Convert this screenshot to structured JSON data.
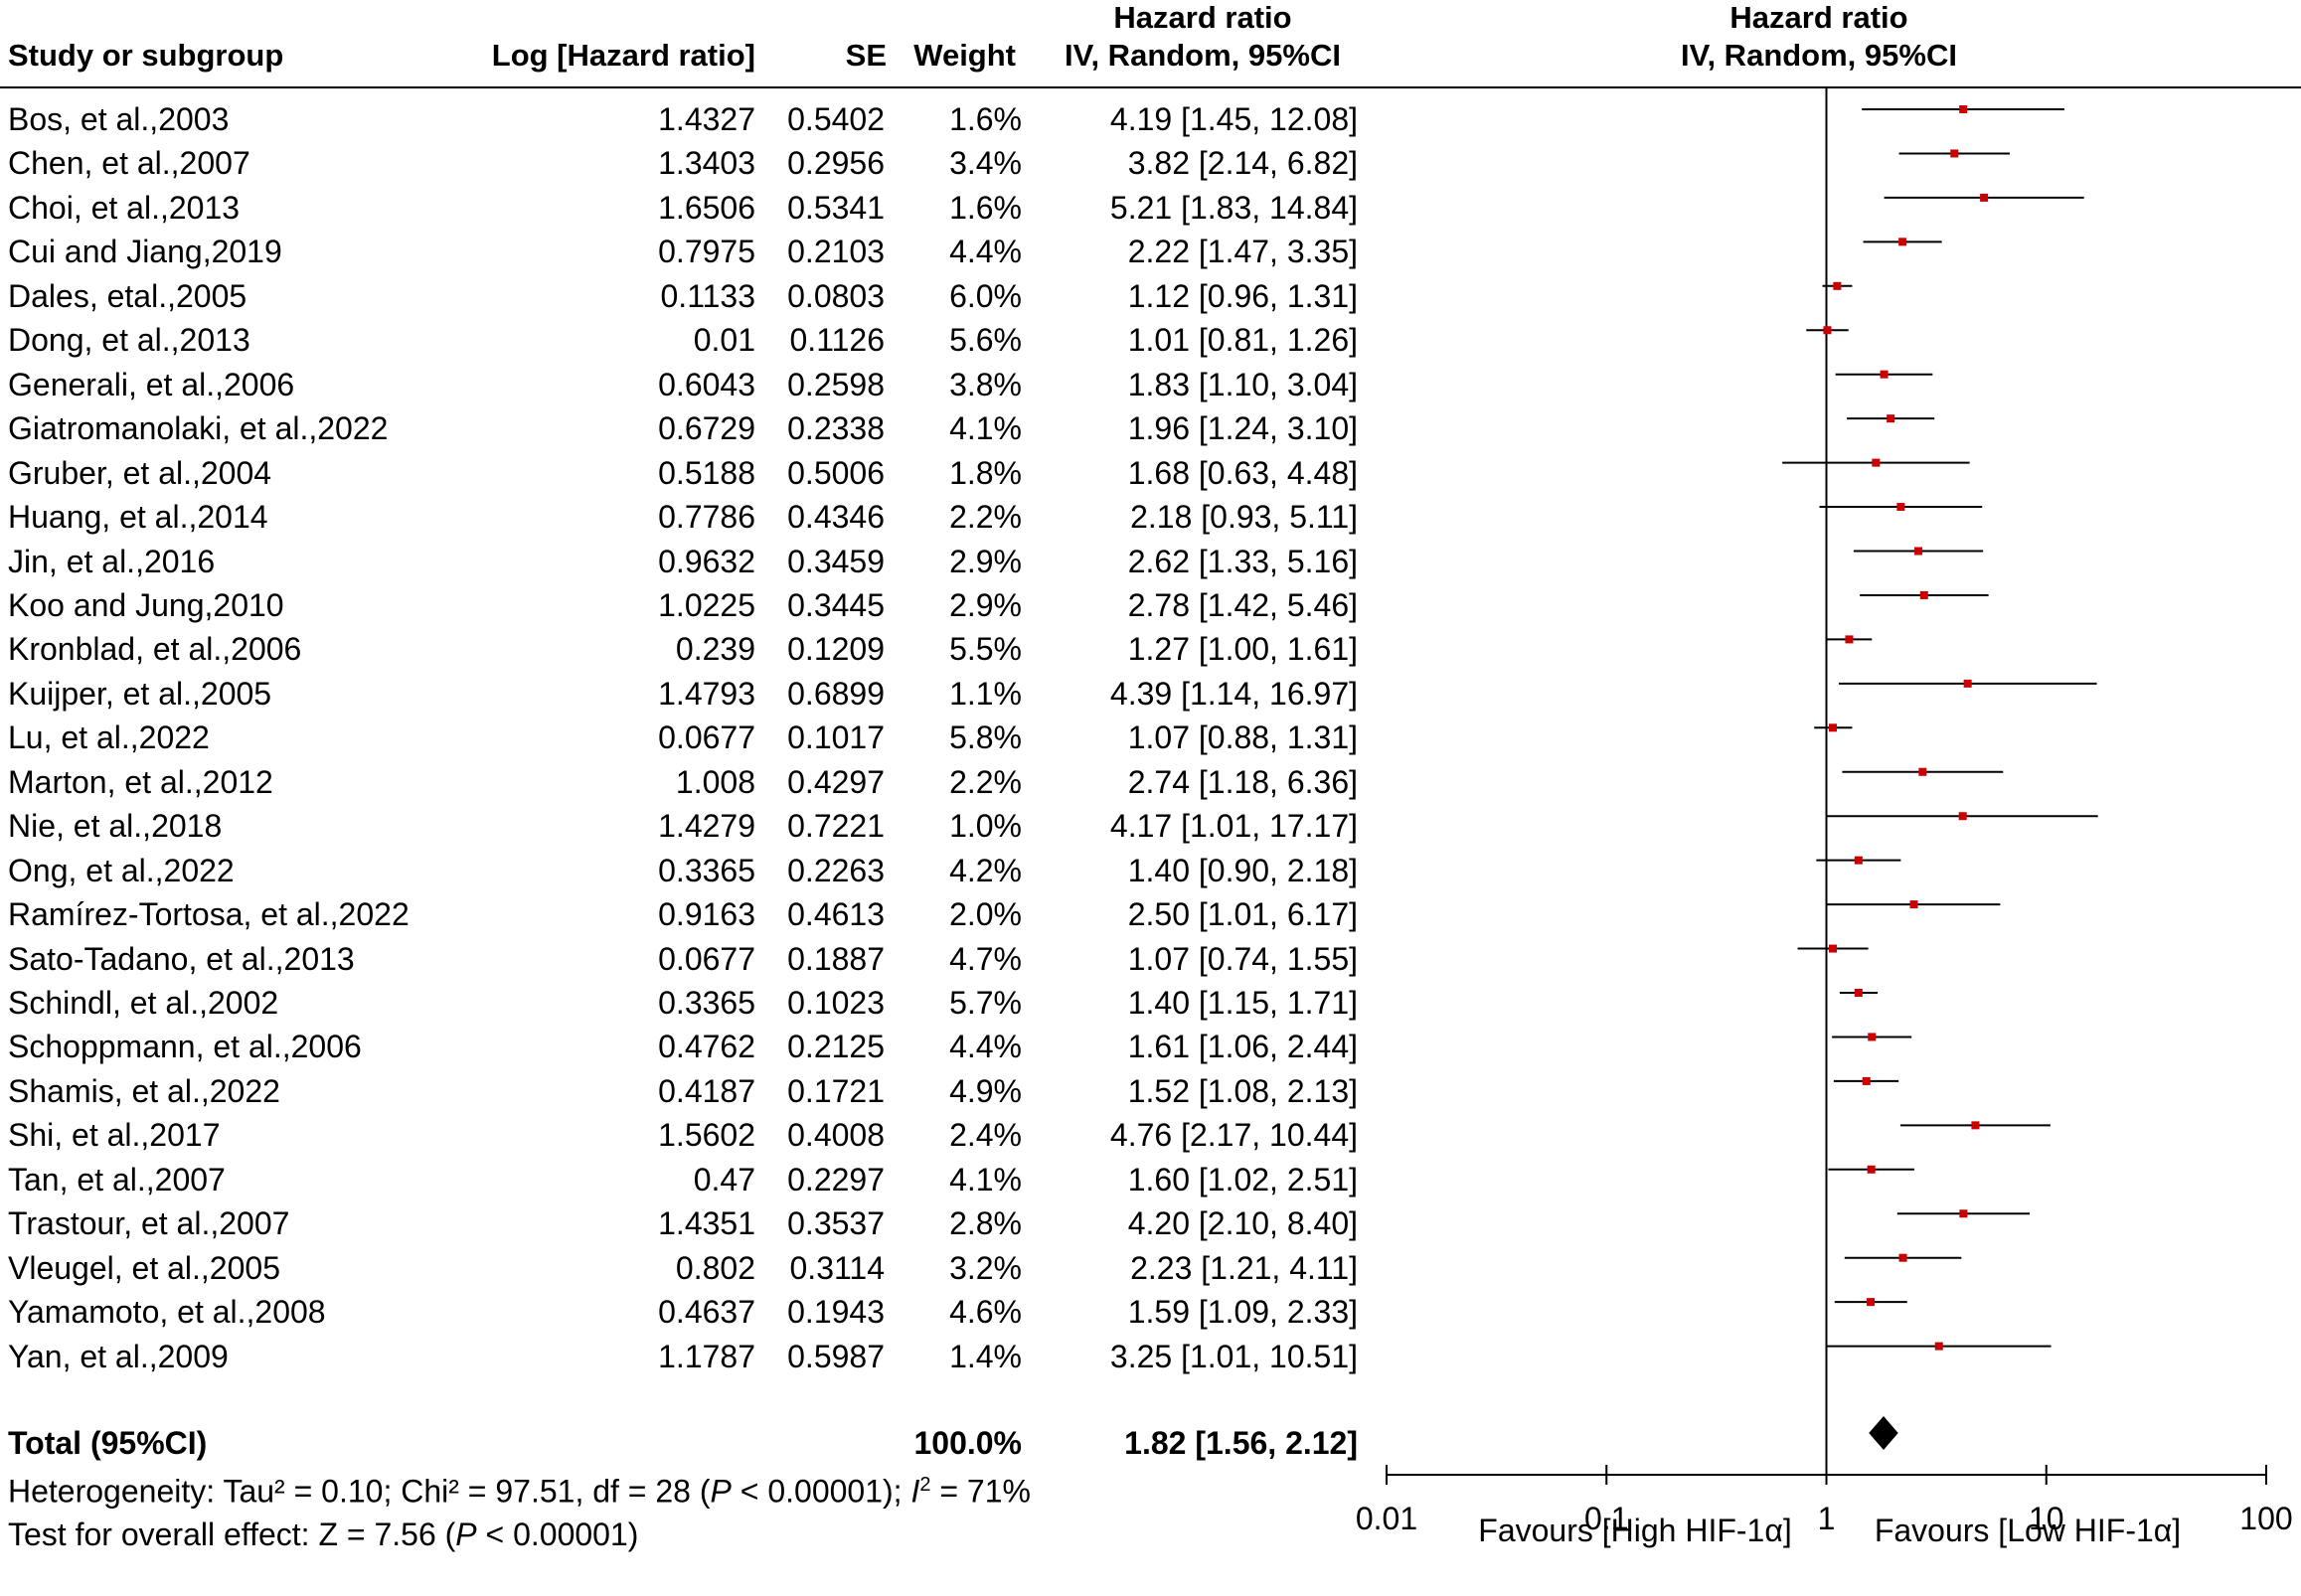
{
  "header": {
    "study_col": "Study or subgroup",
    "loghr_col": "Log [Hazard ratio]",
    "se_col": "SE",
    "weight_col": "Weight",
    "hr_col_line1": "Hazard ratio",
    "hr_col_line2": "IV, Random, 95%CI",
    "plot_col_line1": "Hazard ratio",
    "plot_col_line2": "IV, Random, 95%CI"
  },
  "chart_data": {
    "type": "forest",
    "x_scale": "log",
    "xlim": [
      0.01,
      100
    ],
    "x_ticks": [
      "0.01",
      "0.1",
      "1",
      "10",
      "100"
    ],
    "x_tick_values": [
      0.01,
      0.1,
      1,
      10,
      100
    ],
    "reference_line": 1,
    "favours_left": "Favours [High HIF-1α]",
    "favours_right": "Favours [Low HIF-1α]",
    "marker_color": "#cc0000",
    "studies": [
      {
        "study": "Bos, et al.,2003",
        "log_hr": "1.4327",
        "se": "0.5402",
        "weight": "1.6%",
        "hr_text": "4.19 [1.45, 12.08]",
        "hr": 4.19,
        "lo": 1.45,
        "hi": 12.08
      },
      {
        "study": "Chen, et al.,2007",
        "log_hr": "1.3403",
        "se": "0.2956",
        "weight": "3.4%",
        "hr_text": "3.82 [2.14, 6.82]",
        "hr": 3.82,
        "lo": 2.14,
        "hi": 6.82
      },
      {
        "study": "Choi, et al.,2013",
        "log_hr": "1.6506",
        "se": "0.5341",
        "weight": "1.6%",
        "hr_text": "5.21 [1.83, 14.84]",
        "hr": 5.21,
        "lo": 1.83,
        "hi": 14.84
      },
      {
        "study": "Cui and Jiang,2019",
        "log_hr": "0.7975",
        "se": "0.2103",
        "weight": "4.4%",
        "hr_text": "2.22 [1.47, 3.35]",
        "hr": 2.22,
        "lo": 1.47,
        "hi": 3.35
      },
      {
        "study": "Dales, etal.,2005",
        "log_hr": "0.1133",
        "se": "0.0803",
        "weight": "6.0%",
        "hr_text": "1.12 [0.96, 1.31]",
        "hr": 1.12,
        "lo": 0.96,
        "hi": 1.31
      },
      {
        "study": "Dong, et al.,2013",
        "log_hr": "0.01",
        "se": "0.1126",
        "weight": "5.6%",
        "hr_text": "1.01 [0.81, 1.26]",
        "hr": 1.01,
        "lo": 0.81,
        "hi": 1.26
      },
      {
        "study": "Generali, et al.,2006",
        "log_hr": "0.6043",
        "se": "0.2598",
        "weight": "3.8%",
        "hr_text": "1.83 [1.10, 3.04]",
        "hr": 1.83,
        "lo": 1.1,
        "hi": 3.04
      },
      {
        "study": "Giatromanolaki, et al.,2022",
        "log_hr": "0.6729",
        "se": "0.2338",
        "weight": "4.1%",
        "hr_text": "1.96 [1.24, 3.10]",
        "hr": 1.96,
        "lo": 1.24,
        "hi": 3.1
      },
      {
        "study": "Gruber, et al.,2004",
        "log_hr": "0.5188",
        "se": "0.5006",
        "weight": "1.8%",
        "hr_text": "1.68 [0.63, 4.48]",
        "hr": 1.68,
        "lo": 0.63,
        "hi": 4.48
      },
      {
        "study": "Huang, et al.,2014",
        "log_hr": "0.7786",
        "se": "0.4346",
        "weight": "2.2%",
        "hr_text": "2.18 [0.93, 5.11]",
        "hr": 2.18,
        "lo": 0.93,
        "hi": 5.11
      },
      {
        "study": "Jin, et al.,2016",
        "log_hr": "0.9632",
        "se": "0.3459",
        "weight": "2.9%",
        "hr_text": "2.62 [1.33, 5.16]",
        "hr": 2.62,
        "lo": 1.33,
        "hi": 5.16
      },
      {
        "study": "Koo and Jung,2010",
        "log_hr": "1.0225",
        "se": "0.3445",
        "weight": "2.9%",
        "hr_text": "2.78 [1.42, 5.46]",
        "hr": 2.78,
        "lo": 1.42,
        "hi": 5.46
      },
      {
        "study": "Kronblad, et al.,2006",
        "log_hr": "0.239",
        "se": "0.1209",
        "weight": "5.5%",
        "hr_text": "1.27 [1.00, 1.61]",
        "hr": 1.27,
        "lo": 1.0,
        "hi": 1.61
      },
      {
        "study": "Kuijper, et al.,2005",
        "log_hr": "1.4793",
        "se": "0.6899",
        "weight": "1.1%",
        "hr_text": "4.39 [1.14, 16.97]",
        "hr": 4.39,
        "lo": 1.14,
        "hi": 16.97
      },
      {
        "study": "Lu, et al.,2022",
        "log_hr": "0.0677",
        "se": "0.1017",
        "weight": "5.8%",
        "hr_text": "1.07 [0.88, 1.31]",
        "hr": 1.07,
        "lo": 0.88,
        "hi": 1.31
      },
      {
        "study": "Marton, et al.,2012",
        "log_hr": "1.008",
        "se": "0.4297",
        "weight": "2.2%",
        "hr_text": "2.74 [1.18, 6.36]",
        "hr": 2.74,
        "lo": 1.18,
        "hi": 6.36
      },
      {
        "study": "Nie, et al.,2018",
        "log_hr": "1.4279",
        "se": "0.7221",
        "weight": "1.0%",
        "hr_text": "4.17 [1.01, 17.17]",
        "hr": 4.17,
        "lo": 1.01,
        "hi": 17.17
      },
      {
        "study": "Ong, et al.,2022",
        "log_hr": "0.3365",
        "se": "0.2263",
        "weight": "4.2%",
        "hr_text": "1.40 [0.90, 2.18]",
        "hr": 1.4,
        "lo": 0.9,
        "hi": 2.18
      },
      {
        "study": "Ramírez-Tortosa, et al.,2022",
        "log_hr": "0.9163",
        "se": "0.4613",
        "weight": "2.0%",
        "hr_text": "2.50 [1.01, 6.17]",
        "hr": 2.5,
        "lo": 1.01,
        "hi": 6.17
      },
      {
        "study": "Sato-Tadano, et al.,2013",
        "log_hr": "0.0677",
        "se": "0.1887",
        "weight": "4.7%",
        "hr_text": "1.07 [0.74, 1.55]",
        "hr": 1.07,
        "lo": 0.74,
        "hi": 1.55
      },
      {
        "study": "Schindl, et al.,2002",
        "log_hr": "0.3365",
        "se": "0.1023",
        "weight": "5.7%",
        "hr_text": "1.40 [1.15, 1.71]",
        "hr": 1.4,
        "lo": 1.15,
        "hi": 1.71
      },
      {
        "study": "Schoppmann, et al.,2006",
        "log_hr": "0.4762",
        "se": "0.2125",
        "weight": "4.4%",
        "hr_text": "1.61 [1.06, 2.44]",
        "hr": 1.61,
        "lo": 1.06,
        "hi": 2.44
      },
      {
        "study": "Shamis, et al.,2022",
        "log_hr": "0.4187",
        "se": "0.1721",
        "weight": "4.9%",
        "hr_text": "1.52 [1.08, 2.13]",
        "hr": 1.52,
        "lo": 1.08,
        "hi": 2.13
      },
      {
        "study": "Shi, et al.,2017",
        "log_hr": "1.5602",
        "se": "0.4008",
        "weight": "2.4%",
        "hr_text": "4.76 [2.17, 10.44]",
        "hr": 4.76,
        "lo": 2.17,
        "hi": 10.44
      },
      {
        "study": "Tan, et al.,2007",
        "log_hr": "0.47",
        "se": "0.2297",
        "weight": "4.1%",
        "hr_text": "1.60 [1.02, 2.51]",
        "hr": 1.6,
        "lo": 1.02,
        "hi": 2.51
      },
      {
        "study": "Trastour, et al.,2007",
        "log_hr": "1.4351",
        "se": "0.3537",
        "weight": "2.8%",
        "hr_text": "4.20 [2.10, 8.40]",
        "hr": 4.2,
        "lo": 2.1,
        "hi": 8.4
      },
      {
        "study": "Vleugel, et al.,2005",
        "log_hr": "0.802",
        "se": "0.3114",
        "weight": "3.2%",
        "hr_text": "2.23 [1.21, 4.11]",
        "hr": 2.23,
        "lo": 1.21,
        "hi": 4.11
      },
      {
        "study": "Yamamoto, et al.,2008",
        "log_hr": "0.4637",
        "se": "0.1943",
        "weight": "4.6%",
        "hr_text": "1.59 [1.09, 2.33]",
        "hr": 1.59,
        "lo": 1.09,
        "hi": 2.33
      },
      {
        "study": "Yan, et al.,2009",
        "log_hr": "1.1787",
        "se": "0.5987",
        "weight": "1.4%",
        "hr_text": "3.25 [1.01, 10.51]",
        "hr": 3.25,
        "lo": 1.01,
        "hi": 10.51
      }
    ],
    "total": {
      "label": "Total (95%CI)",
      "weight": "100.0%",
      "hr_text": "1.82 [1.56, 2.12]",
      "hr": 1.82,
      "lo": 1.56,
      "hi": 2.12
    }
  },
  "footer": {
    "heterogeneity_a": "Heterogeneity: Tau² = 0.10; Chi² = 97.51, df = 28 (",
    "heterogeneity_p": "P",
    "heterogeneity_b": " < 0.00001); ",
    "heterogeneity_i": "I",
    "heterogeneity_sup": "2",
    "heterogeneity_c": " = 71%",
    "overall_a": "Test for overall effect: Z = 7.56 (",
    "overall_p": "P",
    "overall_b": " < 0.00001)"
  }
}
